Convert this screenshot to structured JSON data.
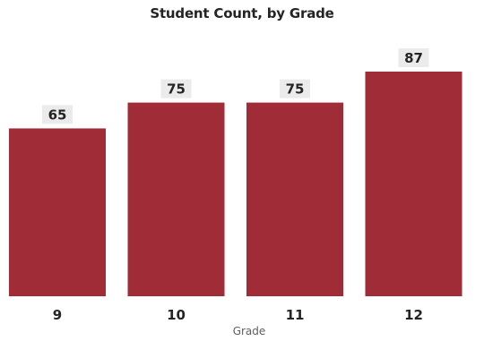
{
  "chart_data": {
    "type": "bar",
    "title": "Student Count, by Grade",
    "xlabel": "Grade",
    "ylabel": "",
    "categories": [
      "9",
      "10",
      "11",
      "12"
    ],
    "values": [
      65,
      75,
      75,
      87
    ],
    "ylim": [
      0,
      87
    ],
    "grid": false,
    "legend": "none",
    "data_labels": true,
    "colors": {
      "bar": "#a02c38",
      "label_background": "#ebebeb",
      "text": "#252423"
    }
  }
}
